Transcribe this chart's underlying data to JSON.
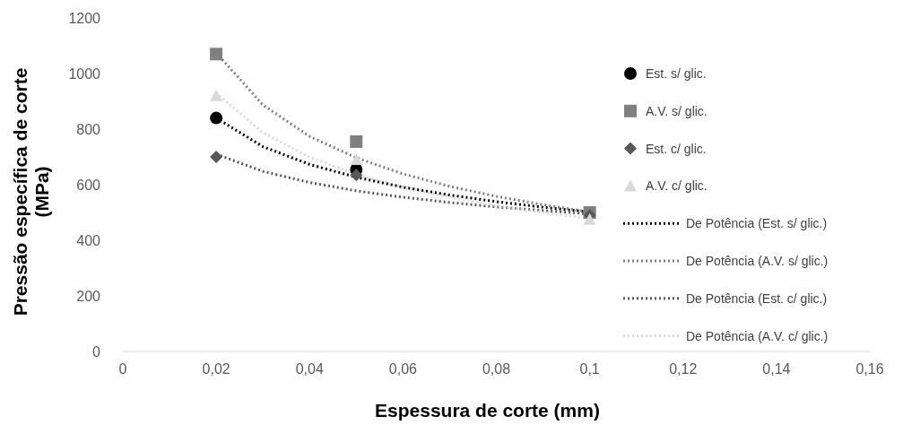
{
  "chart_data": {
    "type": "scatter",
    "xlabel": "Espessura de corte (mm)",
    "ylabel": "Pressão específica de corte\n(MPa)",
    "xlim": [
      0,
      0.16
    ],
    "ylim": [
      0,
      1200
    ],
    "xticks": [
      {
        "value": 0,
        "label": "0"
      },
      {
        "value": 0.02,
        "label": "0,02"
      },
      {
        "value": 0.04,
        "label": "0,04"
      },
      {
        "value": 0.06,
        "label": "0,06"
      },
      {
        "value": 0.08,
        "label": "0,08"
      },
      {
        "value": 0.1,
        "label": "0,1"
      },
      {
        "value": 0.12,
        "label": "0,12"
      },
      {
        "value": 0.14,
        "label": "0,14"
      },
      {
        "value": 0.16,
        "label": "0,16"
      }
    ],
    "yticks": [
      0,
      200,
      400,
      600,
      800,
      1000,
      1200
    ],
    "grid": false,
    "legend": "right",
    "series": [
      {
        "name": "Est. s/ glic.",
        "marker": "circle",
        "color": "#000000",
        "x": [
          0.02,
          0.05
        ],
        "values": [
          840,
          655
        ]
      },
      {
        "name": "A.V. s/ glic.",
        "marker": "square",
        "color": "#808080",
        "x": [
          0.02,
          0.05,
          0.1
        ],
        "values": [
          1070,
          755,
          500
        ]
      },
      {
        "name": "Est. c/ glic.",
        "marker": "diamond",
        "color": "#595959",
        "x": [
          0.02,
          0.05,
          0.1
        ],
        "values": [
          700,
          635,
          490
        ]
      },
      {
        "name": "A.V. c/ glic.",
        "marker": "triangle",
        "color": "#d9d9d9",
        "x": [
          0.02,
          0.05,
          0.1
        ],
        "values": [
          920,
          690,
          475
        ]
      },
      {
        "name": "De Potência (Est. s/ glic.)",
        "type": "line",
        "line_style": "dotted",
        "color": "#000000",
        "x": [
          0.02,
          0.03,
          0.04,
          0.05,
          0.06,
          0.07,
          0.08,
          0.09,
          0.1
        ],
        "values": [
          840,
          737,
          673,
          627,
          591,
          563,
          539,
          519,
          502
        ]
      },
      {
        "name": "De Potência (A.V. s/ glic.)",
        "type": "line",
        "line_style": "dotted",
        "color": "#808080",
        "x": [
          0.02,
          0.03,
          0.04,
          0.05,
          0.06,
          0.07,
          0.08,
          0.09,
          0.1
        ],
        "values": [
          1075,
          887,
          774,
          697,
          639,
          594,
          558,
          528,
          502
        ]
      },
      {
        "name": "De Potência (Est. c/ glic.)",
        "type": "line",
        "line_style": "dotted",
        "color": "#595959",
        "x": [
          0.02,
          0.03,
          0.04,
          0.05,
          0.06,
          0.07,
          0.08,
          0.09,
          0.1
        ],
        "values": [
          710,
          648,
          608,
          578,
          555,
          536,
          520,
          507,
          495
        ]
      },
      {
        "name": "De Potência (A.V. c/ glic.)",
        "type": "line",
        "line_style": "dotted",
        "color": "#d9d9d9",
        "x": [
          0.02,
          0.03,
          0.04,
          0.05,
          0.06,
          0.07,
          0.08,
          0.09,
          0.1
        ],
        "values": [
          930,
          787,
          699,
          637,
          591,
          555,
          524,
          500,
          478
        ]
      }
    ]
  }
}
